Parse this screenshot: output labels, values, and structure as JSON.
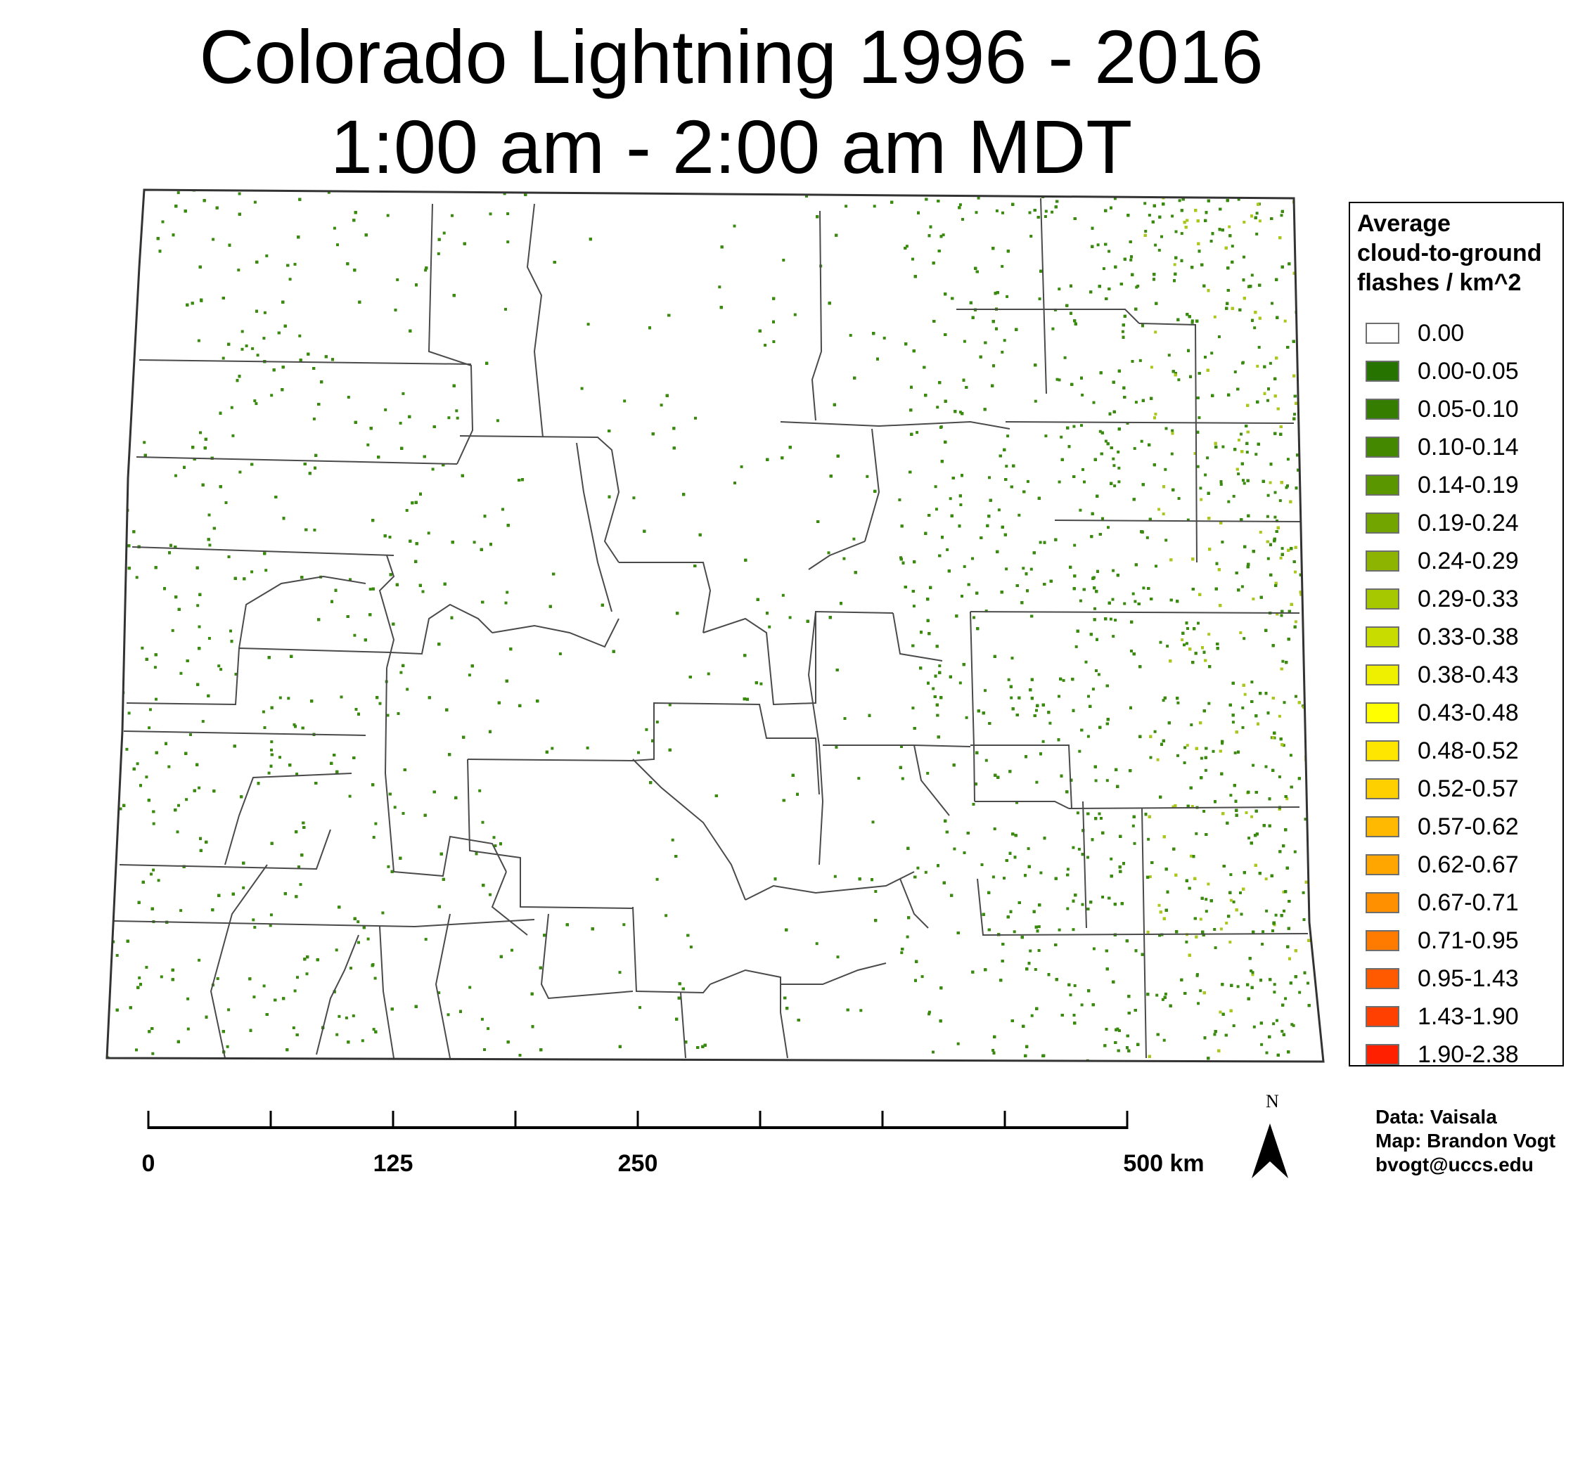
{
  "title": {
    "line1": "Colorado Lightning 1996 - 2016",
    "line2": "1:00 am - 2:00 am MDT"
  },
  "legend": {
    "title_lines": [
      "Average",
      "cloud-to-ground",
      "flashes / km^2"
    ],
    "items": [
      {
        "label": "0.00",
        "color": "#ffffff"
      },
      {
        "label": "0.00-0.05",
        "color": "#267300"
      },
      {
        "label": "0.05-0.10",
        "color": "#347d00"
      },
      {
        "label": "0.10-0.14",
        "color": "#448800"
      },
      {
        "label": "0.14-0.19",
        "color": "#5a9600"
      },
      {
        "label": "0.19-0.24",
        "color": "#73a500"
      },
      {
        "label": "0.24-0.29",
        "color": "#8cb400"
      },
      {
        "label": "0.29-0.33",
        "color": "#a6c800"
      },
      {
        "label": "0.33-0.38",
        "color": "#c8dc00"
      },
      {
        "label": "0.38-0.43",
        "color": "#eef000"
      },
      {
        "label": "0.43-0.48",
        "color": "#ffff00"
      },
      {
        "label": "0.48-0.52",
        "color": "#ffe600"
      },
      {
        "label": "0.52-0.57",
        "color": "#ffd000"
      },
      {
        "label": "0.57-0.62",
        "color": "#ffb900"
      },
      {
        "label": "0.62-0.67",
        "color": "#ffa600"
      },
      {
        "label": "0.67-0.71",
        "color": "#ff9000"
      },
      {
        "label": "0.71-0.95",
        "color": "#ff7b00"
      },
      {
        "label": "0.95-1.43",
        "color": "#ff5a00"
      },
      {
        "label": "1.43-1.90",
        "color": "#ff4000"
      },
      {
        "label": "1.90-2.38",
        "color": "#ff2000"
      }
    ]
  },
  "scale_bar": {
    "labels": [
      "0",
      "125",
      "250",
      "500 km"
    ],
    "label_values_km": [
      0,
      125,
      250,
      500
    ],
    "max_km": 500,
    "tick_count": 9
  },
  "north_arrow": {
    "letter": "N",
    "icon": "north-arrow-icon"
  },
  "credits": {
    "line1": "Data: Vaisala",
    "line2": "Map: Brandon Vogt",
    "line3": "bvogt@uccs.edu"
  },
  "colors": {
    "county_border": "#4a4a4a",
    "state_border": "#333333",
    "flash_low": "#3a8a10",
    "flash_high": "#a8c81e"
  }
}
